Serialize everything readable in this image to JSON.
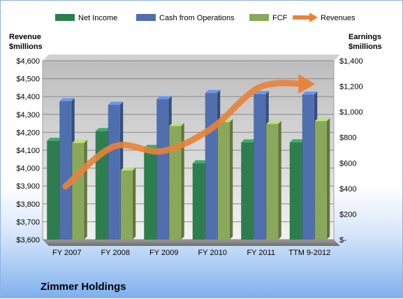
{
  "chart_data": {
    "type": "bar",
    "categories": [
      "FY 2007",
      "FY 2008",
      "FY 2009",
      "FY 2010",
      "FY 2011",
      "TTM 9-2012"
    ],
    "series": [
      {
        "name": "Net Income",
        "axis": "right",
        "color": "#2e7d4f",
        "values": [
          773,
          849,
          717,
          597,
          760,
          761
        ]
      },
      {
        "name": "Cash from Operations",
        "axis": "right",
        "color": "#4f6fae",
        "values": [
          1083,
          1055,
          1099,
          1147,
          1138,
          1135
        ]
      },
      {
        "name": "FCF",
        "axis": "right",
        "color": "#8aa85a",
        "values": [
          756,
          541,
          889,
          920,
          905,
          927
        ]
      },
      {
        "name": "Revenues",
        "axis": "left",
        "type": "line",
        "color": "#e8823a",
        "values": [
          3898,
          4121,
          4095,
          4220,
          4452,
          4470
        ]
      }
    ],
    "left_axis": {
      "title": [
        "Revenue",
        "$millions"
      ],
      "ticks": [
        "$3,600",
        "$3,700",
        "$3,800",
        "$3,900",
        "$4,000",
        "$4,100",
        "$4,200",
        "$4,300",
        "$4,400",
        "$4,500",
        "$4,600"
      ],
      "ylim": [
        3600,
        4600
      ]
    },
    "right_axis": {
      "title": [
        "Earnings",
        "$millions"
      ],
      "ticks": [
        "$-",
        "$200",
        "$400",
        "$600",
        "$800",
        "$1,000",
        "$1,200",
        "$1,400"
      ],
      "ylim": [
        0,
        1400
      ]
    },
    "legend_position": "top",
    "grid": true,
    "company": "Zimmer Holdings"
  }
}
